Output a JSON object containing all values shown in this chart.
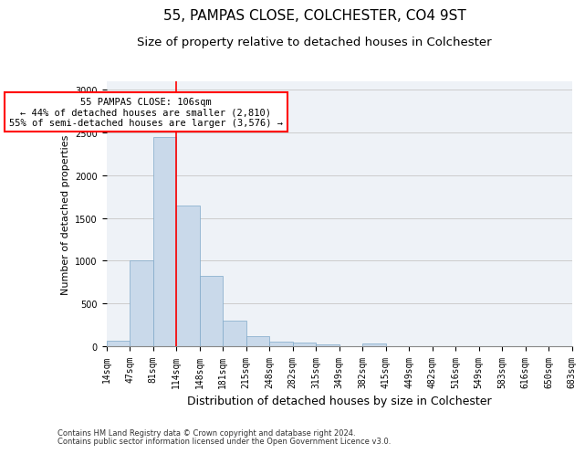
{
  "title": "55, PAMPAS CLOSE, COLCHESTER, CO4 9ST",
  "subtitle": "Size of property relative to detached houses in Colchester",
  "xlabel": "Distribution of detached houses by size in Colchester",
  "ylabel": "Number of detached properties",
  "bar_values": [
    60,
    1000,
    2450,
    1650,
    820,
    300,
    120,
    50,
    45,
    25,
    0,
    30,
    0,
    0,
    0,
    0,
    0,
    0,
    0,
    0
  ],
  "bar_labels": [
    "14sqm",
    "47sqm",
    "81sqm",
    "114sqm",
    "148sqm",
    "181sqm",
    "215sqm",
    "248sqm",
    "282sqm",
    "315sqm",
    "349sqm",
    "382sqm",
    "415sqm",
    "449sqm",
    "482sqm",
    "516sqm",
    "549sqm",
    "583sqm",
    "616sqm",
    "650sqm",
    "683sqm"
  ],
  "bar_color": "#c9d9ea",
  "bar_edge_color": "#7fa8c9",
  "red_line_x": 2.5,
  "annotation_text": "55 PAMPAS CLOSE: 106sqm\n← 44% of detached houses are smaller (2,810)\n55% of semi-detached houses are larger (3,576) →",
  "annotation_box_color": "white",
  "annotation_box_edge_color": "red",
  "red_line_color": "red",
  "ylim": [
    0,
    3100
  ],
  "yticks": [
    0,
    500,
    1000,
    1500,
    2000,
    2500,
    3000
  ],
  "grid_color": "#cccccc",
  "bg_color": "#eef2f7",
  "footnote1": "Contains HM Land Registry data © Crown copyright and database right 2024.",
  "footnote2": "Contains public sector information licensed under the Open Government Licence v3.0.",
  "title_fontsize": 11,
  "subtitle_fontsize": 9.5,
  "xlabel_fontsize": 9,
  "ylabel_fontsize": 8,
  "tick_fontsize": 7,
  "annotation_fontsize": 7.5
}
